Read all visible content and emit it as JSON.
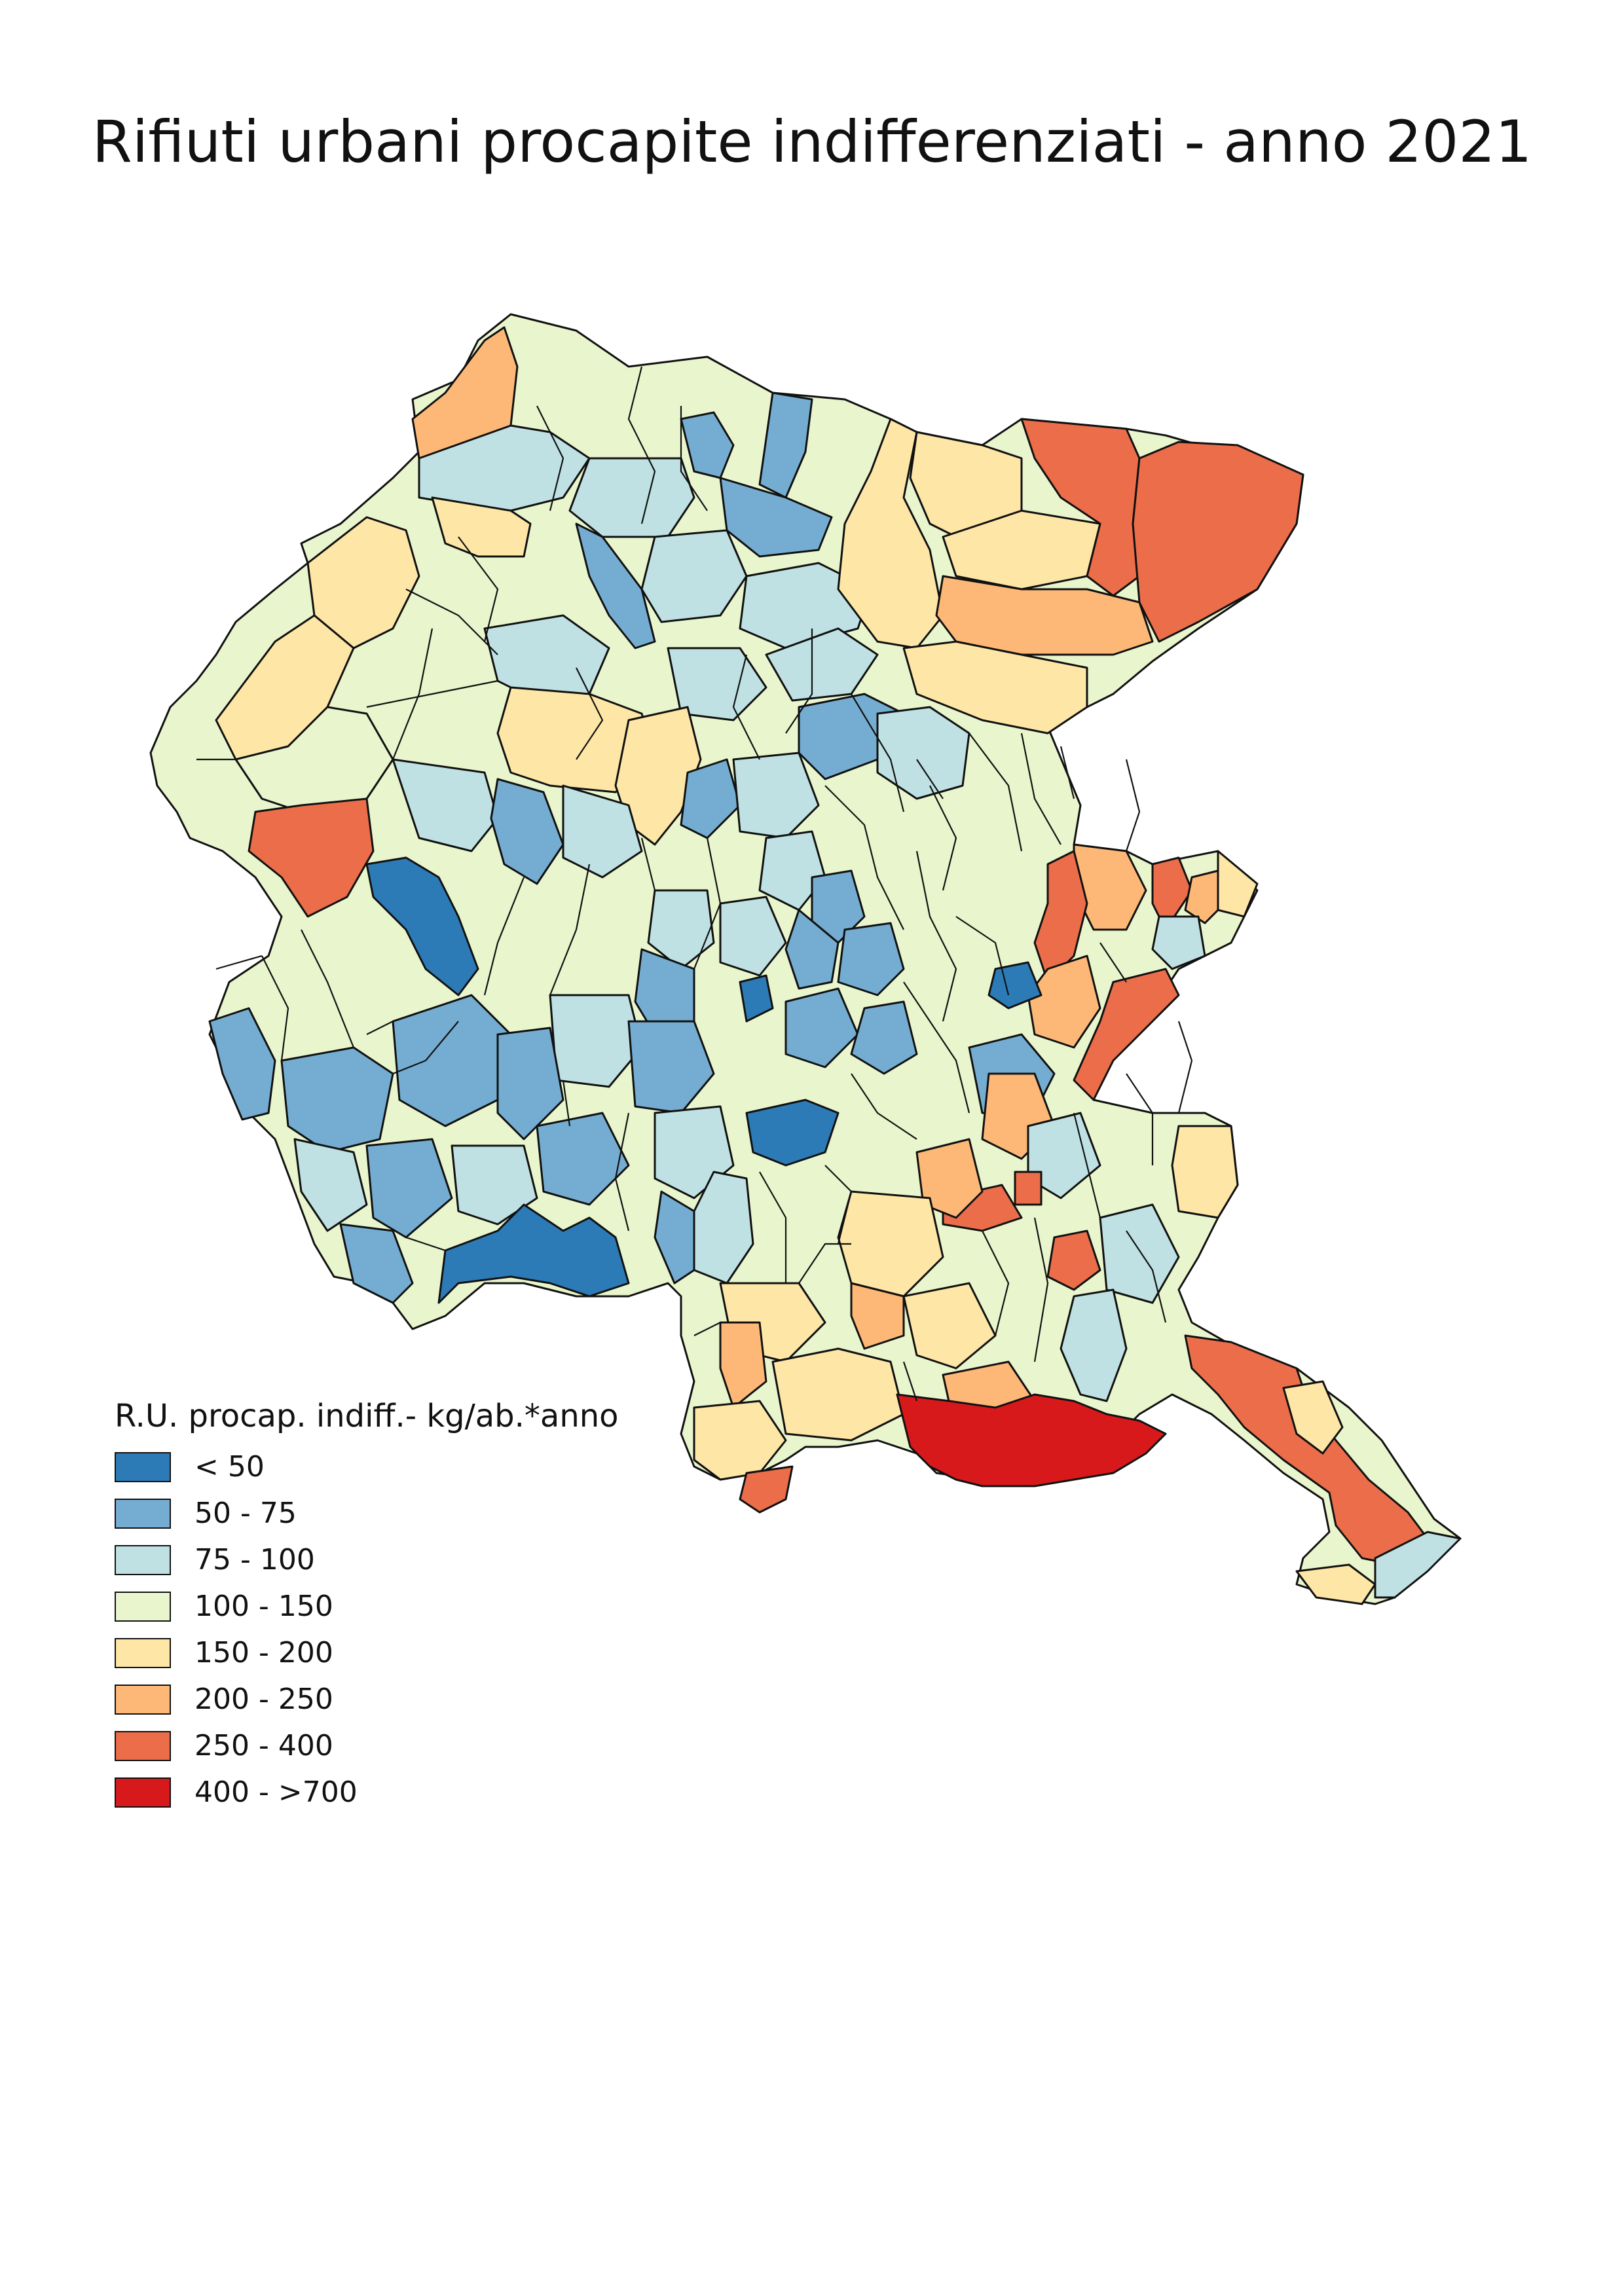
{
  "map": {
    "title": "Rifiuti urbani procapite indifferenziati - anno 2021",
    "colors": {
      "c1": "#2c7bb6",
      "c2": "#74add1",
      "c3": "#bfe1e3",
      "c4": "#e9f5cd",
      "c5": "#fde6a6",
      "c6": "#fdb877",
      "c7": "#eb6d4a",
      "c8": "#d7191c",
      "outline": "#111111"
    }
  },
  "legend": {
    "title": "R.U. procap. indiff.- kg/ab.*anno",
    "items": [
      {
        "label": "< 50",
        "color": "#2c7bb6"
      },
      {
        "label": "50 - 75",
        "color": "#74add1"
      },
      {
        "label": "75 - 100",
        "color": "#bfe1e3"
      },
      {
        "label": "100 - 150",
        "color": "#e9f5cd"
      },
      {
        "label": "150 - 200",
        "color": "#fde6a6"
      },
      {
        "label": "200 - 250",
        "color": "#fdb877"
      },
      {
        "label": "250 - 400",
        "color": "#eb6d4a"
      },
      {
        "label": "400 - >700",
        "color": "#d7191c"
      }
    ]
  }
}
